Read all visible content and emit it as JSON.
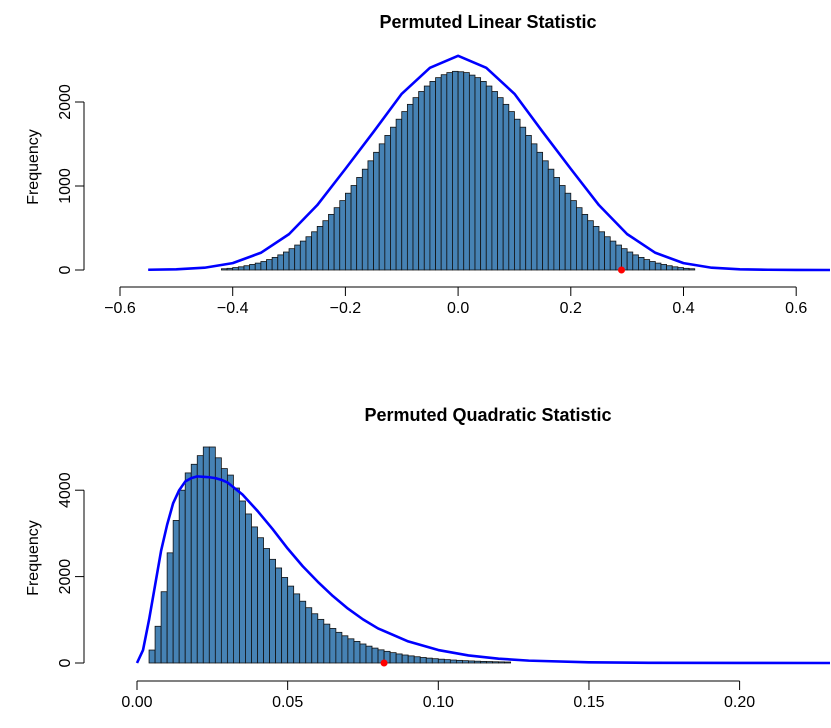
{
  "chart_data": [
    {
      "type": "histogram",
      "title": "Permuted Linear Statistic",
      "ylabel": "Frequency",
      "xlabel": "",
      "xlim": [
        -0.6,
        0.66
      ],
      "ylim": [
        0,
        2500
      ],
      "xticks": [
        -0.6,
        -0.4,
        -0.2,
        0.0,
        0.2,
        0.4,
        0.6
      ],
      "xtick_labels": [
        "−0.6",
        "−0.4",
        "−0.2",
        "0.0",
        "0.2",
        "0.4",
        "0.6"
      ],
      "yticks": [
        0,
        1000,
        2000
      ],
      "ytick_labels": [
        "0",
        "1000",
        "2000"
      ],
      "bins": {
        "start": -0.42,
        "width": 0.01,
        "count": 84
      },
      "counts": [
        15,
        20,
        29,
        38,
        51,
        66,
        82,
        101,
        124,
        150,
        180,
        214,
        254,
        297,
        344,
        396,
        455,
        519,
        587,
        662,
        742,
        826,
        914,
        1006,
        1102,
        1200,
        1300,
        1401,
        1502,
        1602,
        1700,
        1795,
        1886,
        1972,
        2052,
        2125,
        2190,
        2245,
        2290,
        2325,
        2350,
        2365,
        2360,
        2350,
        2320,
        2290,
        2245,
        2190,
        2125,
        2052,
        1972,
        1886,
        1795,
        1700,
        1602,
        1502,
        1401,
        1300,
        1200,
        1102,
        1006,
        914,
        826,
        742,
        662,
        587,
        519,
        455,
        396,
        344,
        297,
        254,
        214,
        180,
        150,
        124,
        101,
        82,
        66,
        51,
        38,
        29,
        20,
        15
      ],
      "fit_curve": {
        "color": "#0000ff",
        "x": [
          -0.55,
          -0.5,
          -0.45,
          -0.4,
          -0.35,
          -0.3,
          -0.25,
          -0.2,
          -0.15,
          -0.1,
          -0.05,
          0.0,
          0.05,
          0.1,
          0.15,
          0.2,
          0.25,
          0.3,
          0.35,
          0.4,
          0.45,
          0.5,
          0.55,
          0.6,
          0.66
        ],
        "y": [
          3,
          8,
          27,
          82,
          205,
          427,
          772,
          1204,
          1645,
          2098,
          2407,
          2550,
          2407,
          2098,
          1645,
          1204,
          772,
          427,
          205,
          82,
          27,
          8,
          3,
          1,
          0
        ]
      },
      "observed": {
        "x": 0.29,
        "y": 0,
        "color": "#ff0000"
      }
    },
    {
      "type": "histogram",
      "title": "Permuted Quadratic Statistic",
      "ylabel": "Frequency",
      "xlabel": "",
      "xlim": [
        0.0,
        0.23
      ],
      "ylim": [
        0,
        5000
      ],
      "xticks": [
        0.0,
        0.05,
        0.1,
        0.15,
        0.2
      ],
      "xtick_labels": [
        "0.00",
        "0.05",
        "0.10",
        "0.15",
        "0.20"
      ],
      "yticks": [
        0,
        2000,
        4000
      ],
      "ytick_labels": [
        "0",
        "2000",
        "4000"
      ],
      "bins": {
        "start": 0.004,
        "width": 0.002,
        "count": 60
      },
      "counts": [
        300,
        850,
        1650,
        2550,
        3300,
        4000,
        4400,
        4600,
        4800,
        5000,
        5000,
        4750,
        4500,
        4350,
        4050,
        3750,
        3450,
        3150,
        2900,
        2650,
        2400,
        2200,
        1980,
        1780,
        1600,
        1430,
        1280,
        1140,
        1010,
        900,
        800,
        710,
        630,
        560,
        500,
        440,
        390,
        345,
        305,
        270,
        240,
        210,
        185,
        165,
        145,
        128,
        113,
        100,
        88,
        78,
        69,
        61,
        54,
        48,
        42,
        37,
        33,
        29,
        26,
        23
      ],
      "fit_curve": {
        "color": "#0000ff",
        "x": [
          0.0,
          0.002,
          0.004,
          0.006,
          0.008,
          0.01,
          0.012,
          0.014,
          0.016,
          0.018,
          0.02,
          0.022,
          0.024,
          0.026,
          0.028,
          0.03,
          0.035,
          0.04,
          0.045,
          0.05,
          0.055,
          0.06,
          0.065,
          0.07,
          0.075,
          0.08,
          0.09,
          0.1,
          0.11,
          0.12,
          0.13,
          0.15,
          0.17,
          0.2,
          0.23
        ],
        "y": [
          0,
          300,
          1000,
          1800,
          2600,
          3200,
          3700,
          4000,
          4200,
          4280,
          4320,
          4310,
          4300,
          4280,
          4240,
          4180,
          3900,
          3520,
          3100,
          2650,
          2240,
          1880,
          1550,
          1260,
          1010,
          800,
          500,
          300,
          175,
          100,
          55,
          17,
          5,
          1,
          0
        ]
      },
      "observed": {
        "x": 0.082,
        "y": 0,
        "color": "#ff0000"
      }
    }
  ]
}
